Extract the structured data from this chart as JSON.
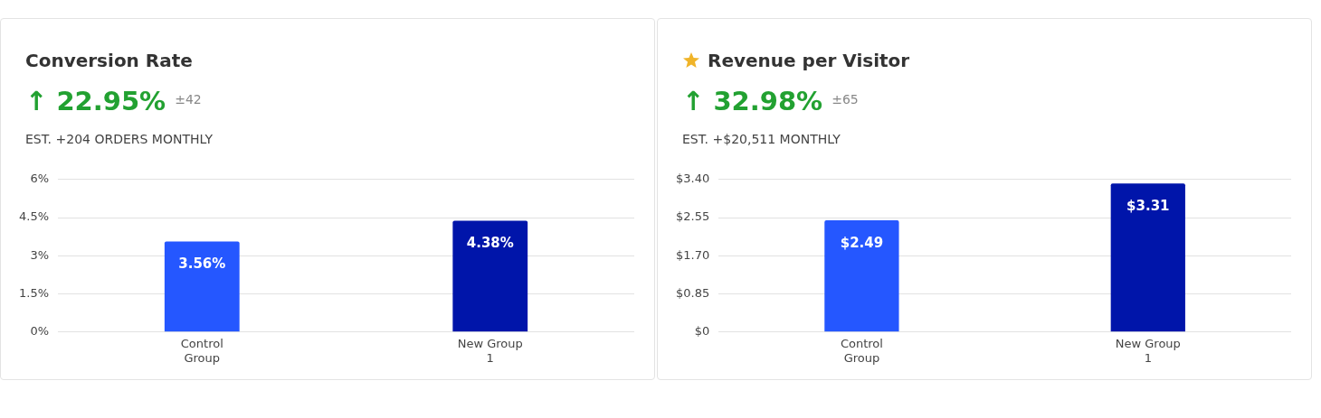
{
  "chart_data": [
    {
      "type": "bar",
      "title": "Conversion Rate",
      "subtitle": "↑ 22.95%",
      "annotations": [
        "±42",
        "EST. +204 ORDERS MONTHLY"
      ],
      "categories": [
        "Control Group",
        "New Group 1"
      ],
      "values": [
        3.56,
        4.38
      ],
      "colors": [
        "#2557ff",
        "#0015aa"
      ],
      "value_labels": [
        "3.56%",
        "4.38%"
      ],
      "ylim": [
        0,
        6
      ],
      "yticks": [
        {
          "value": 0,
          "label": "0%"
        },
        {
          "value": 1.5,
          "label": "1.5%"
        },
        {
          "value": 3,
          "label": "3%"
        },
        {
          "value": 4.5,
          "label": "4.5%"
        },
        {
          "value": 6,
          "label": "6%"
        }
      ],
      "grid": "y",
      "legend": false
    },
    {
      "type": "bar",
      "title": "Revenue per Visitor",
      "subtitle": "↑ 32.98%",
      "annotations": [
        "±65",
        "EST. +$20,511 MONTHLY"
      ],
      "categories": [
        "Control Group",
        "New Group 1"
      ],
      "values": [
        2.49,
        3.31
      ],
      "colors": [
        "#2557ff",
        "#0015aa"
      ],
      "value_labels": [
        "$2.49",
        "$3.31"
      ],
      "ylim": [
        0,
        3.4
      ],
      "yticks": [
        {
          "value": 0,
          "label": "$0"
        },
        {
          "value": 0.85,
          "label": "$0.85"
        },
        {
          "value": 1.7,
          "label": "$1.70"
        },
        {
          "value": 2.55,
          "label": "$2.55"
        },
        {
          "value": 3.4,
          "label": "$3.40"
        }
      ],
      "grid": "y",
      "legend": false
    }
  ]
}
